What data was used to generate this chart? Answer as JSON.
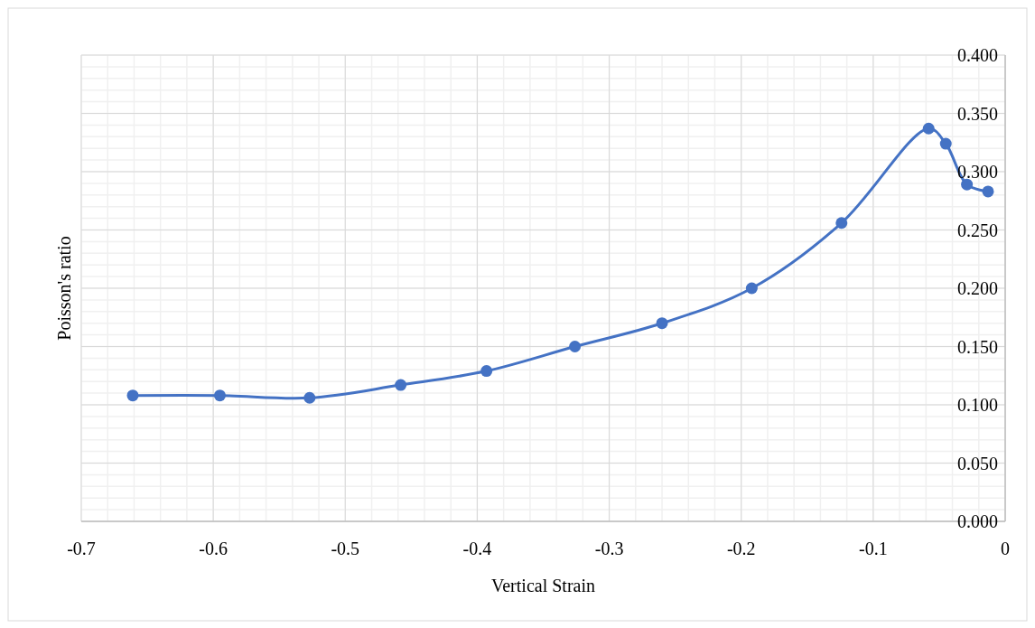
{
  "chart_data": {
    "type": "line",
    "xlabel": "Vertical Strain",
    "ylabel": "Poisson's ratio",
    "x": [
      -0.661,
      -0.595,
      -0.527,
      -0.458,
      -0.393,
      -0.326,
      -0.26,
      -0.192,
      -0.124,
      -0.058,
      -0.045,
      -0.029,
      -0.013
    ],
    "series": [
      {
        "color": "#4472c4",
        "values": [
          0.108,
          0.108,
          0.106,
          0.117,
          0.129,
          0.15,
          0.17,
          0.2,
          0.256,
          0.337,
          0.324,
          0.289,
          0.283
        ]
      }
    ],
    "xlim": [
      -0.7,
      0
    ],
    "ylim": [
      0,
      0.4
    ],
    "xticks": [
      -0.7,
      -0.6,
      -0.5,
      -0.4,
      -0.3,
      -0.2,
      -0.1,
      0
    ],
    "yticks": [
      {
        "value": 0,
        "label": "0.000"
      },
      {
        "value": 0.05,
        "label": "0.050"
      },
      {
        "value": 0.1,
        "label": "0.100"
      },
      {
        "value": 0.15,
        "label": "0.150"
      },
      {
        "value": 0.2,
        "label": "0.200"
      },
      {
        "value": 0.25,
        "label": "0.250"
      },
      {
        "value": 0.3,
        "label": "0.300"
      },
      {
        "value": 0.35,
        "label": "0.350"
      },
      {
        "value": 0.4,
        "label": "0.400"
      }
    ],
    "grid": true,
    "marker": "circle",
    "line_style": "solid"
  }
}
